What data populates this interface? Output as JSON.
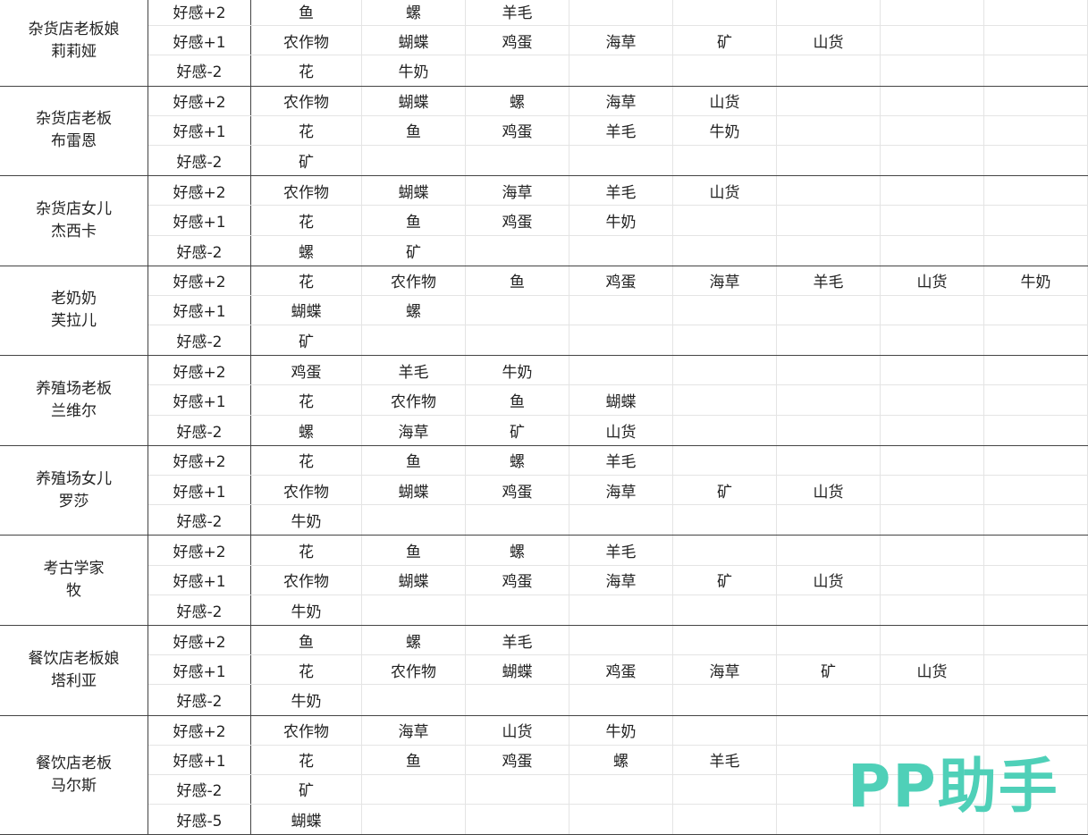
{
  "watermark": "PP助手",
  "watermark_color": "#4fd0b8",
  "groups": [
    {
      "name": [
        "杂货店老板娘",
        "莉莉娅"
      ],
      "rows": [
        {
          "level": "好感+2",
          "items": [
            "鱼",
            "螺",
            "羊毛"
          ]
        },
        {
          "level": "好感+1",
          "items": [
            "农作物",
            "蝴蝶",
            "鸡蛋",
            "海草",
            "矿",
            "山货"
          ]
        },
        {
          "level": "好感-2",
          "items": [
            "花",
            "牛奶"
          ]
        }
      ]
    },
    {
      "name": [
        "杂货店老板",
        "布雷恩"
      ],
      "rows": [
        {
          "level": "好感+2",
          "items": [
            "农作物",
            "蝴蝶",
            "螺",
            "海草",
            "山货"
          ]
        },
        {
          "level": "好感+1",
          "items": [
            "花",
            "鱼",
            "鸡蛋",
            "羊毛",
            "牛奶"
          ]
        },
        {
          "level": "好感-2",
          "items": [
            "矿"
          ]
        }
      ]
    },
    {
      "name": [
        "杂货店女儿",
        "杰西卡"
      ],
      "rows": [
        {
          "level": "好感+2",
          "items": [
            "农作物",
            "蝴蝶",
            "海草",
            "羊毛",
            "山货"
          ]
        },
        {
          "level": "好感+1",
          "items": [
            "花",
            "鱼",
            "鸡蛋",
            "牛奶"
          ]
        },
        {
          "level": "好感-2",
          "items": [
            "螺",
            "矿"
          ]
        }
      ]
    },
    {
      "name": [
        "老奶奶",
        "芙拉儿"
      ],
      "rows": [
        {
          "level": "好感+2",
          "items": [
            "花",
            "农作物",
            "鱼",
            "鸡蛋",
            "海草",
            "羊毛",
            "山货",
            "牛奶"
          ]
        },
        {
          "level": "好感+1",
          "items": [
            "蝴蝶",
            "螺"
          ]
        },
        {
          "level": "好感-2",
          "items": [
            "矿"
          ]
        }
      ]
    },
    {
      "name": [
        "养殖场老板",
        "兰维尔"
      ],
      "rows": [
        {
          "level": "好感+2",
          "items": [
            "鸡蛋",
            "羊毛",
            "牛奶"
          ]
        },
        {
          "level": "好感+1",
          "items": [
            "花",
            "农作物",
            "鱼",
            "蝴蝶"
          ]
        },
        {
          "level": "好感-2",
          "items": [
            "螺",
            "海草",
            "矿",
            "山货"
          ]
        }
      ]
    },
    {
      "name": [
        "养殖场女儿",
        "罗莎"
      ],
      "rows": [
        {
          "level": "好感+2",
          "items": [
            "花",
            "鱼",
            "螺",
            "羊毛"
          ]
        },
        {
          "level": "好感+1",
          "items": [
            "农作物",
            "蝴蝶",
            "鸡蛋",
            "海草",
            "矿",
            "山货"
          ]
        },
        {
          "level": "好感-2",
          "items": [
            "牛奶"
          ]
        }
      ]
    },
    {
      "name": [
        "考古学家",
        "牧"
      ],
      "rows": [
        {
          "level": "好感+2",
          "items": [
            "花",
            "鱼",
            "螺",
            "羊毛"
          ]
        },
        {
          "level": "好感+1",
          "items": [
            "农作物",
            "蝴蝶",
            "鸡蛋",
            "海草",
            "矿",
            "山货"
          ]
        },
        {
          "level": "好感-2",
          "items": [
            "牛奶"
          ]
        }
      ]
    },
    {
      "name": [
        "餐饮店老板娘",
        "塔利亚"
      ],
      "rows": [
        {
          "level": "好感+2",
          "items": [
            "鱼",
            "螺",
            "羊毛"
          ]
        },
        {
          "level": "好感+1",
          "items": [
            "花",
            "农作物",
            "蝴蝶",
            "鸡蛋",
            "海草",
            "矿",
            "山货"
          ]
        },
        {
          "level": "好感-2",
          "items": [
            "牛奶"
          ]
        }
      ]
    },
    {
      "name": [
        "餐饮店老板",
        "马尔斯"
      ],
      "rows": [
        {
          "level": "好感+2",
          "items": [
            "农作物",
            "海草",
            "山货",
            "牛奶"
          ]
        },
        {
          "level": "好感+1",
          "items": [
            "花",
            "鱼",
            "鸡蛋",
            "螺",
            "羊毛"
          ]
        },
        {
          "level": "好感-2",
          "items": [
            "矿"
          ]
        },
        {
          "level": "好感-5",
          "items": [
            "蝴蝶"
          ]
        }
      ]
    }
  ]
}
